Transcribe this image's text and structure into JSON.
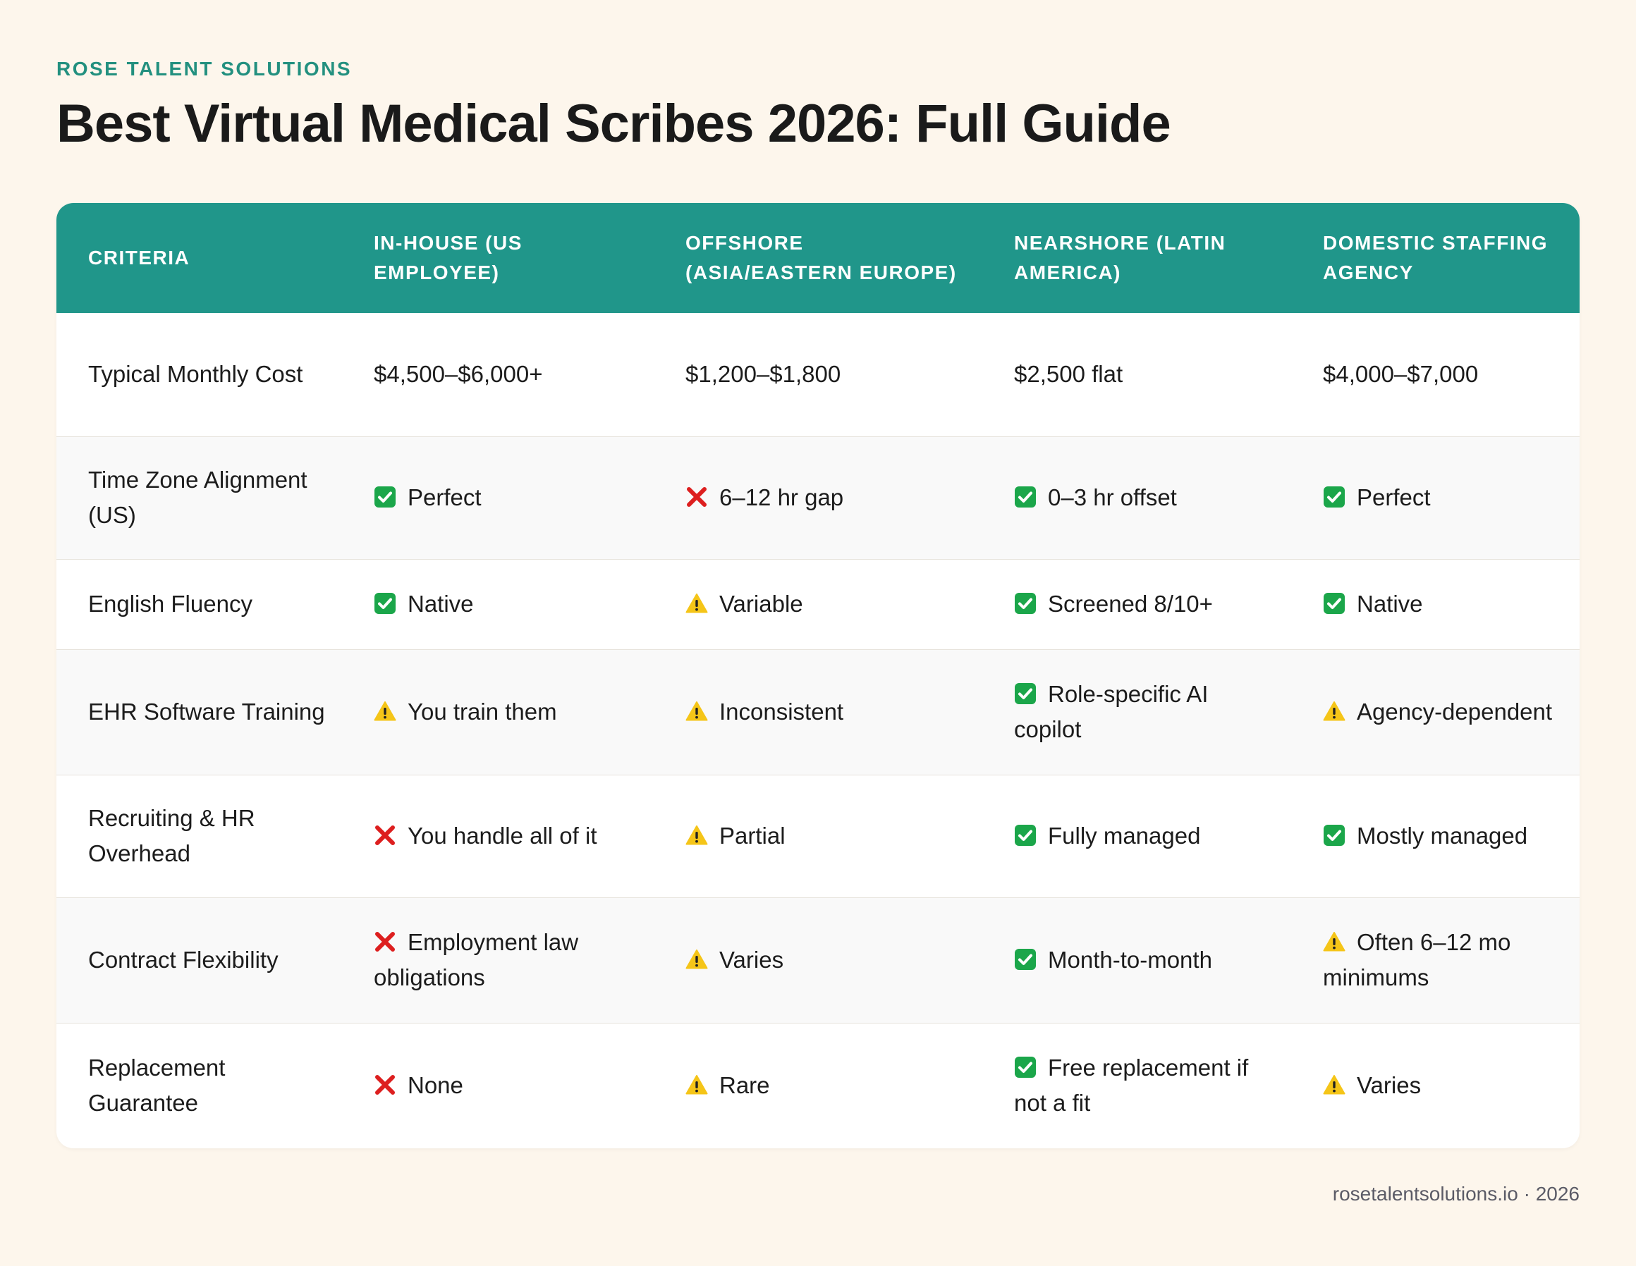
{
  "brand": "ROSE TALENT SOLUTIONS",
  "title": "Best Virtual Medical Scribes 2026: Full Guide",
  "colors": {
    "accent": "#20968a",
    "brand_text": "#23907f",
    "background": "#fdf6ec",
    "check": "#1ba64a",
    "cross": "#dd1f1f",
    "warning": "#f5c518"
  },
  "table": {
    "headers": [
      "CRITERIA",
      "IN-HOUSE (US EMPLOYEE)",
      "OFFSHORE (ASIA/EASTERN EUROPE)",
      "NEARSHORE (LATIN AMERICA)",
      "DOMESTIC STAFFING AGENCY"
    ],
    "rows": [
      {
        "criteria": "Typical Monthly Cost",
        "cells": [
          {
            "icon": "",
            "text": "$4,500–$6,000+"
          },
          {
            "icon": "",
            "text": "$1,200–$1,800"
          },
          {
            "icon": "",
            "text": "$2,500 flat"
          },
          {
            "icon": "",
            "text": "$4,000–$7,000"
          }
        ]
      },
      {
        "criteria": "Time Zone Alignment (US)",
        "cells": [
          {
            "icon": "check-icon",
            "text": "Perfect"
          },
          {
            "icon": "cross-icon",
            "text": "6–12 hr gap"
          },
          {
            "icon": "check-icon",
            "text": "0–3 hr offset"
          },
          {
            "icon": "check-icon",
            "text": "Perfect"
          }
        ]
      },
      {
        "criteria": "English Fluency",
        "cells": [
          {
            "icon": "check-icon",
            "text": "Native"
          },
          {
            "icon": "warning-icon",
            "text": "Variable"
          },
          {
            "icon": "check-icon",
            "text": "Screened 8/10+"
          },
          {
            "icon": "check-icon",
            "text": "Native"
          }
        ]
      },
      {
        "criteria": "EHR Software Training",
        "cells": [
          {
            "icon": "warning-icon",
            "text": "You train them"
          },
          {
            "icon": "warning-icon",
            "text": "Inconsistent"
          },
          {
            "icon": "check-icon",
            "text": "Role-specific AI copilot"
          },
          {
            "icon": "warning-icon",
            "text": "Agency-dependent"
          }
        ]
      },
      {
        "criteria": "Recruiting & HR Overhead",
        "cells": [
          {
            "icon": "cross-icon",
            "text": "You handle all of it"
          },
          {
            "icon": "warning-icon",
            "text": "Partial"
          },
          {
            "icon": "check-icon",
            "text": "Fully managed"
          },
          {
            "icon": "check-icon",
            "text": "Mostly managed"
          }
        ]
      },
      {
        "criteria": "Contract Flexibility",
        "cells": [
          {
            "icon": "cross-icon",
            "text": "Employment law obligations"
          },
          {
            "icon": "warning-icon",
            "text": "Varies"
          },
          {
            "icon": "check-icon",
            "text": "Month-to-month"
          },
          {
            "icon": "warning-icon",
            "text": "Often 6–12 mo minimums"
          }
        ]
      },
      {
        "criteria": "Replacement Guarantee",
        "cells": [
          {
            "icon": "cross-icon",
            "text": "None"
          },
          {
            "icon": "warning-icon",
            "text": "Rare"
          },
          {
            "icon": "check-icon",
            "text": "Free replacement if not a fit"
          },
          {
            "icon": "warning-icon",
            "text": "Varies"
          }
        ]
      }
    ]
  },
  "footer": "rosetalentsolutions.io · 2026"
}
